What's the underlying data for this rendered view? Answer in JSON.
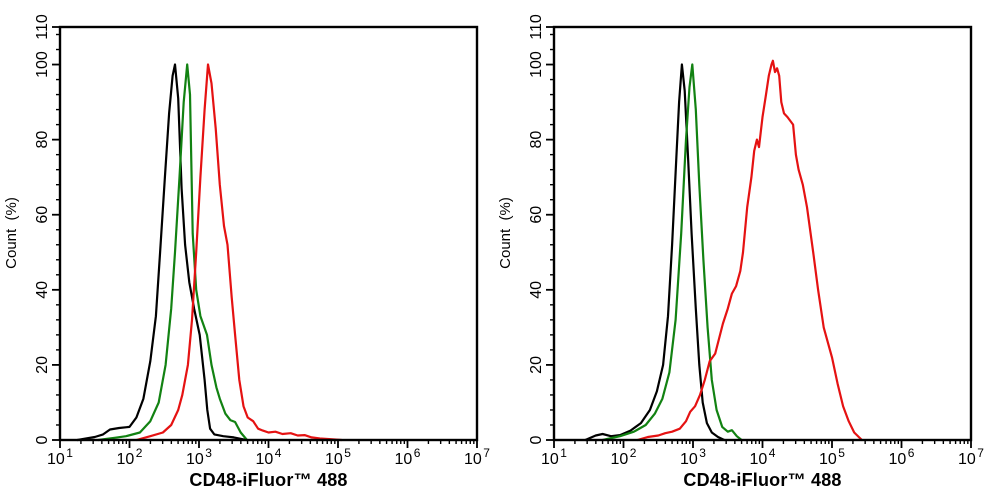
{
  "figure": {
    "background": "#ffffff",
    "axis_color": "#000000",
    "text_color": "#000000"
  },
  "chart_data": [
    {
      "id": "left-panel",
      "type": "line",
      "subtype": "flow-cytometry-overlay-histogram",
      "xlabel": "CD48-iFluor™ 488",
      "ylabel": "Count  (%)",
      "xscale": "log10",
      "xlim": [
        10,
        10000000
      ],
      "ylim": [
        0,
        110
      ],
      "xtick_exponents": [
        1,
        2,
        3,
        4,
        5,
        6,
        7
      ],
      "ytick_major": [
        0,
        20,
        40,
        60,
        80,
        100,
        110
      ],
      "ytick_minor_step": 4,
      "grid": false,
      "legend": null,
      "series": [
        {
          "name": "black-curve",
          "color": "#000000",
          "points": [
            [
              1.25,
              0
            ],
            [
              1.5,
              0.8
            ],
            [
              1.62,
              1.5
            ],
            [
              1.72,
              2.8
            ],
            [
              1.85,
              3.2
            ],
            [
              2.0,
              3.5
            ],
            [
              2.1,
              6
            ],
            [
              2.2,
              11
            ],
            [
              2.3,
              21
            ],
            [
              2.38,
              33
            ],
            [
              2.44,
              50
            ],
            [
              2.51,
              70
            ],
            [
              2.57,
              87
            ],
            [
              2.62,
              97
            ],
            [
              2.655,
              100
            ],
            [
              2.7,
              91
            ],
            [
              2.75,
              67
            ],
            [
              2.8,
              52
            ],
            [
              2.86,
              42
            ],
            [
              2.93,
              35
            ],
            [
              3.01,
              28
            ],
            [
              3.08,
              16
            ],
            [
              3.12,
              8
            ],
            [
              3.16,
              3
            ],
            [
              3.22,
              1.5
            ],
            [
              3.35,
              1
            ],
            [
              3.5,
              0.7
            ],
            [
              3.68,
              0
            ]
          ]
        },
        {
          "name": "green-curve",
          "color": "#128212",
          "points": [
            [
              1.55,
              0
            ],
            [
              1.8,
              0.6
            ],
            [
              1.95,
              1
            ],
            [
              2.15,
              2
            ],
            [
              2.3,
              5
            ],
            [
              2.42,
              10
            ],
            [
              2.52,
              20
            ],
            [
              2.6,
              35
            ],
            [
              2.655,
              50
            ],
            [
              2.72,
              70
            ],
            [
              2.78,
              90
            ],
            [
              2.83,
              100
            ],
            [
              2.87,
              92
            ],
            [
              2.91,
              55
            ],
            [
              2.96,
              40
            ],
            [
              3.02,
              33
            ],
            [
              3.115,
              28
            ],
            [
              3.18,
              20
            ],
            [
              3.25,
              14
            ],
            [
              3.3,
              11
            ],
            [
              3.38,
              7
            ],
            [
              3.45,
              5.3
            ],
            [
              3.52,
              4.8
            ],
            [
              3.6,
              2
            ],
            [
              3.69,
              0
            ]
          ]
        },
        {
          "name": "red-curve",
          "color": "#e51212",
          "points": [
            [
              2.1,
              0
            ],
            [
              2.3,
              1
            ],
            [
              2.48,
              2
            ],
            [
              2.6,
              4
            ],
            [
              2.7,
              8
            ],
            [
              2.76,
              12
            ],
            [
              2.84,
              20
            ],
            [
              2.9,
              32
            ],
            [
              2.96,
              50
            ],
            [
              3.02,
              70
            ],
            [
              3.08,
              88
            ],
            [
              3.13,
              100
            ],
            [
              3.18,
              95
            ],
            [
              3.24,
              83
            ],
            [
              3.3,
              68
            ],
            [
              3.36,
              57
            ],
            [
              3.41,
              52
            ],
            [
              3.47,
              38
            ],
            [
              3.52,
              28
            ],
            [
              3.58,
              16
            ],
            [
              3.64,
              9
            ],
            [
              3.7,
              6
            ],
            [
              3.78,
              5
            ],
            [
              3.85,
              3
            ],
            [
              3.92,
              2.5
            ],
            [
              4.0,
              2
            ],
            [
              4.1,
              2.2
            ],
            [
              4.2,
              1.6
            ],
            [
              4.32,
              1.8
            ],
            [
              4.42,
              1.2
            ],
            [
              4.52,
              1.3
            ],
            [
              4.62,
              0.7
            ],
            [
              4.74,
              0.4
            ],
            [
              4.9,
              0.2
            ],
            [
              5.05,
              0
            ]
          ]
        }
      ]
    },
    {
      "id": "right-panel",
      "type": "line",
      "subtype": "flow-cytometry-overlay-histogram",
      "xlabel": "CD48-iFluor™ 488",
      "ylabel": "Count  (%)",
      "xscale": "log10",
      "xlim": [
        10,
        10000000
      ],
      "ylim": [
        0,
        110
      ],
      "xtick_exponents": [
        1,
        2,
        3,
        4,
        5,
        6,
        7
      ],
      "ytick_major": [
        0,
        20,
        40,
        60,
        80,
        100,
        110
      ],
      "ytick_minor_step": 4,
      "grid": false,
      "legend": null,
      "series": [
        {
          "name": "black-curve",
          "color": "#000000",
          "points": [
            [
              1.45,
              0
            ],
            [
              1.6,
              1.2
            ],
            [
              1.7,
              1.6
            ],
            [
              1.82,
              1
            ],
            [
              1.95,
              1.3
            ],
            [
              2.1,
              2.5
            ],
            [
              2.25,
              4.5
            ],
            [
              2.38,
              8
            ],
            [
              2.48,
              13
            ],
            [
              2.57,
              20
            ],
            [
              2.64,
              33
            ],
            [
              2.7,
              52
            ],
            [
              2.76,
              75
            ],
            [
              2.8,
              90
            ],
            [
              2.84,
              100
            ],
            [
              2.88,
              93
            ],
            [
              2.93,
              75
            ],
            [
              2.98,
              55
            ],
            [
              3.04,
              35
            ],
            [
              3.09,
              20
            ],
            [
              3.14,
              10
            ],
            [
              3.2,
              4.5
            ],
            [
              3.27,
              2
            ],
            [
              3.36,
              0.8
            ],
            [
              3.45,
              0
            ]
          ]
        },
        {
          "name": "green-curve",
          "color": "#128212",
          "points": [
            [
              1.7,
              0
            ],
            [
              1.95,
              1
            ],
            [
              2.15,
              2.2
            ],
            [
              2.32,
              4
            ],
            [
              2.45,
              7
            ],
            [
              2.56,
              11
            ],
            [
              2.66,
              18
            ],
            [
              2.75,
              32
            ],
            [
              2.83,
              55
            ],
            [
              2.9,
              80
            ],
            [
              2.95,
              94
            ],
            [
              2.99,
              100
            ],
            [
              3.04,
              88
            ],
            [
              3.09,
              68
            ],
            [
              3.15,
              48
            ],
            [
              3.21,
              30
            ],
            [
              3.27,
              16
            ],
            [
              3.34,
              8
            ],
            [
              3.42,
              3.5
            ],
            [
              3.5,
              2.2
            ],
            [
              3.56,
              2.6
            ],
            [
              3.63,
              1
            ],
            [
              3.7,
              0
            ]
          ]
        },
        {
          "name": "red-curve",
          "color": "#e51212",
          "points": [
            [
              2.2,
              0
            ],
            [
              2.35,
              0.8
            ],
            [
              2.5,
              1.2
            ],
            [
              2.6,
              1.8
            ],
            [
              2.7,
              2.2
            ],
            [
              2.81,
              3
            ],
            [
              2.9,
              5
            ],
            [
              2.96,
              7.5
            ],
            [
              3.03,
              9
            ],
            [
              3.1,
              12
            ],
            [
              3.17,
              16
            ],
            [
              3.24,
              21
            ],
            [
              3.32,
              23
            ],
            [
              3.43,
              31
            ],
            [
              3.5,
              35
            ],
            [
              3.56,
              39
            ],
            [
              3.62,
              41
            ],
            [
              3.68,
              45
            ],
            [
              3.72,
              50
            ],
            [
              3.78,
              62
            ],
            [
              3.84,
              70
            ],
            [
              3.88,
              77
            ],
            [
              3.92,
              80
            ],
            [
              3.95,
              78
            ],
            [
              4.0,
              86
            ],
            [
              4.05,
              92
            ],
            [
              4.09,
              97
            ],
            [
              4.13,
              100
            ],
            [
              4.15,
              101
            ],
            [
              4.18,
              98
            ],
            [
              4.21,
              99
            ],
            [
              4.24,
              97
            ],
            [
              4.27,
              90
            ],
            [
              4.31,
              87
            ],
            [
              4.36,
              86
            ],
            [
              4.44,
              84
            ],
            [
              4.48,
              76
            ],
            [
              4.52,
              72
            ],
            [
              4.58,
              68
            ],
            [
              4.64,
              62
            ],
            [
              4.73,
              50
            ],
            [
              4.8,
              40
            ],
            [
              4.88,
              30
            ],
            [
              5.0,
              22
            ],
            [
              5.08,
              15
            ],
            [
              5.16,
              9
            ],
            [
              5.24,
              5
            ],
            [
              5.32,
              2
            ],
            [
              5.43,
              0
            ]
          ]
        }
      ]
    }
  ]
}
